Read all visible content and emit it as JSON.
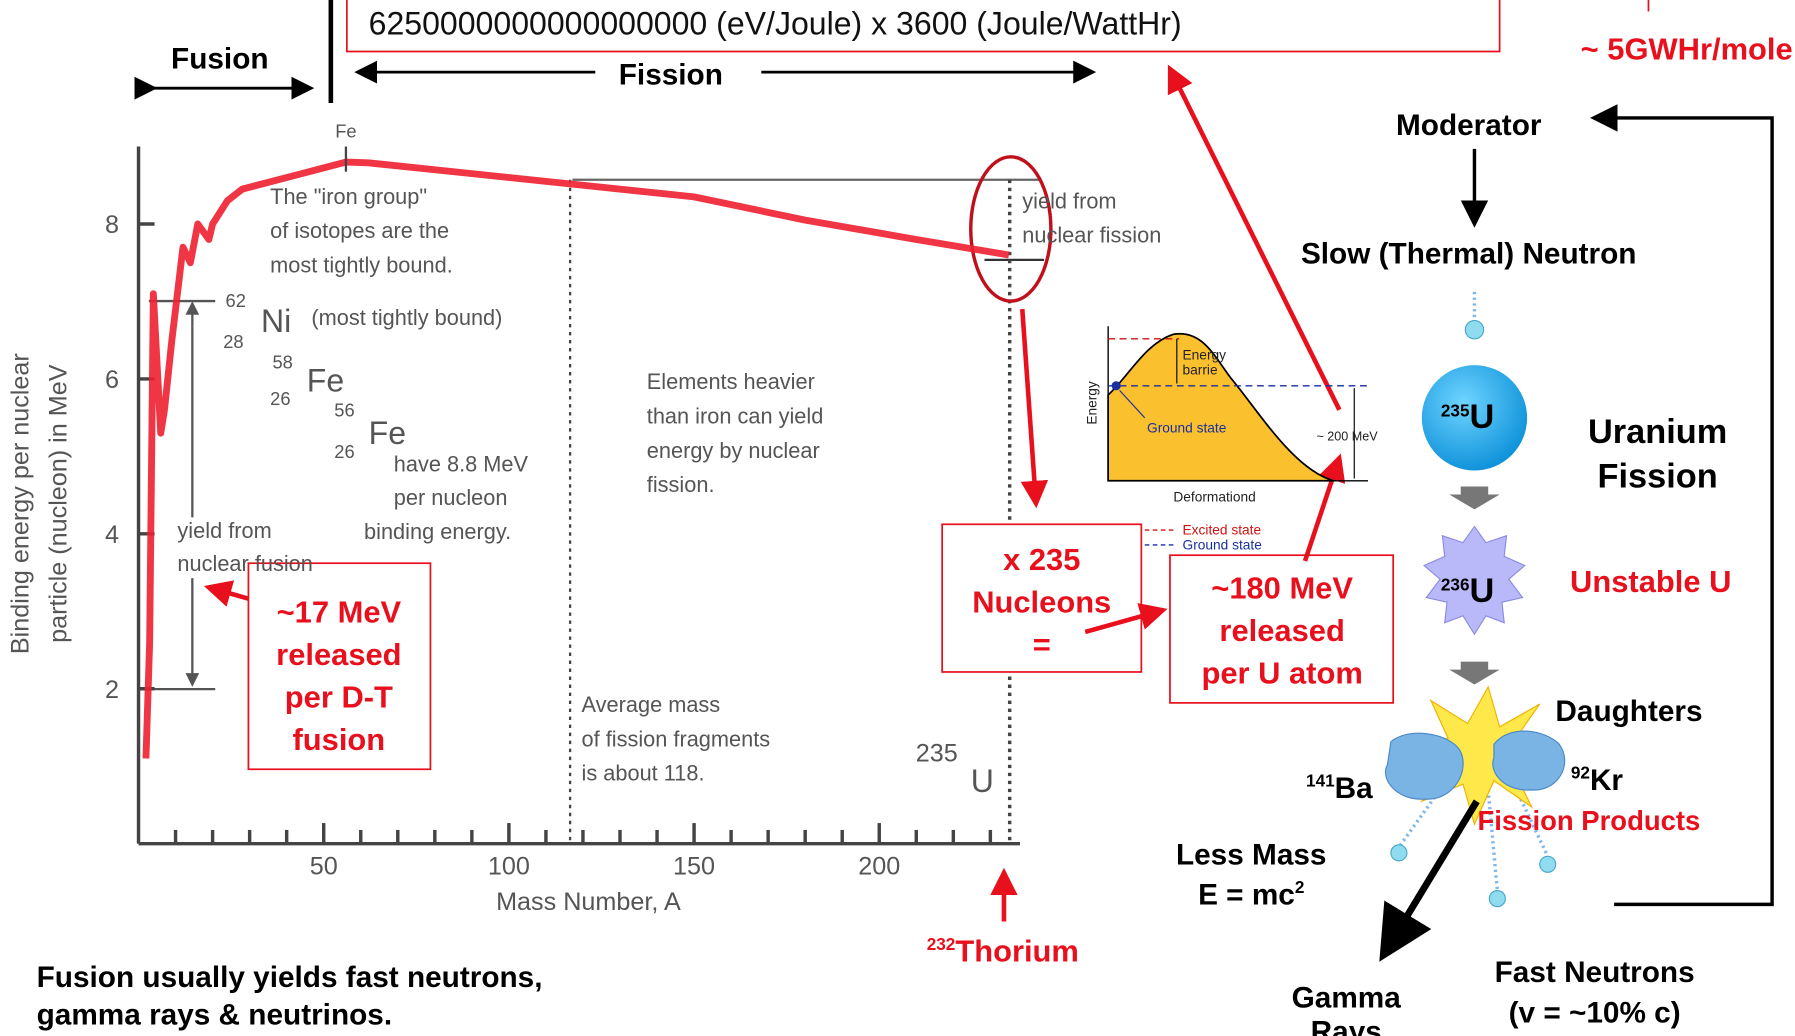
{
  "header": {
    "formula": "6250000000000000000 (eV/Joule) x 3600 (Joule/WattHr)",
    "result": "~ 5GWHr/mole"
  },
  "regions": {
    "fusion": "Fusion",
    "fission": "Fission"
  },
  "chart": {
    "peak_label": "Fe",
    "y_label": [
      "Binding energy per nuclear",
      "particle (nucleon) in MeV"
    ],
    "x_label": "Mass Number, A",
    "xlim": [
      0,
      238
    ],
    "ylim": [
      0,
      9
    ],
    "xticks": [
      50,
      100,
      150,
      200
    ],
    "xminorticks": [
      10,
      20,
      30,
      40,
      60,
      70,
      80,
      90,
      110,
      120,
      130,
      140,
      160,
      170,
      180,
      190,
      210,
      220,
      230
    ],
    "yticks": [
      2,
      4,
      6,
      8
    ],
    "x": [
      2,
      3,
      4,
      6,
      7,
      9,
      12,
      14,
      16,
      19,
      20,
      24,
      28,
      32,
      40,
      56,
      62,
      80,
      100,
      120,
      150,
      180,
      210,
      235
    ],
    "y": [
      1.1,
      2.6,
      7.1,
      5.3,
      5.6,
      6.5,
      7.7,
      7.5,
      8.0,
      7.8,
      8.0,
      8.3,
      8.45,
      8.5,
      8.6,
      8.8,
      8.79,
      8.7,
      8.6,
      8.5,
      8.35,
      8.05,
      7.8,
      7.6
    ],
    "notes": {
      "iron_group": [
        "The \"iron group\"",
        "of isotopes are the",
        "most tightly bound."
      ],
      "ni62": {
        "mass": "62",
        "number": "28",
        "symbol": "Ni",
        "note": "(most tightly bound)"
      },
      "fe58": {
        "mass": "58",
        "number": "26",
        "symbol": "Fe"
      },
      "fe56": {
        "mass": "56",
        "number": "26",
        "symbol": "Fe"
      },
      "fe_note": [
        "have 8.8 MeV",
        "per nucleon",
        "binding energy."
      ],
      "fusion_yield": [
        "yield from",
        "nuclear fusion"
      ],
      "heavier": [
        "Elements heavier",
        "than iron can yield",
        "energy by nuclear",
        "fission."
      ],
      "fragments": [
        "Average mass",
        "of fission fragments",
        "is about 118."
      ],
      "u235": {
        "mass": "235",
        "symbol": "U"
      },
      "fission_yield": [
        "yield from",
        "nuclear fission"
      ]
    }
  },
  "callouts": {
    "fusion_energy": [
      "~17 MeV",
      "released",
      "per D-T",
      "fusion"
    ],
    "nucleons": [
      "x 235",
      "Nucleons",
      "="
    ],
    "fission_energy": [
      "~180 MeV",
      "released",
      "per U atom"
    ],
    "thorium": {
      "mass": "232",
      "name": "Thorium"
    }
  },
  "energy_diagram": {
    "y_label": "Energy",
    "barrier": [
      "Energy",
      "barrie"
    ],
    "ground": "Ground state",
    "release": "~ 200 MeV",
    "x_label": "Deformation",
    "x_symbol": "d",
    "legend": [
      "Excited state",
      "Ground state"
    ]
  },
  "fission_process": {
    "moderator": "Moderator",
    "slow_neutron": "Slow (Thermal) Neutron",
    "u235": {
      "mass": "235",
      "symbol": "U"
    },
    "title": [
      "Uranium",
      "Fission"
    ],
    "u236": {
      "mass": "236",
      "symbol": "U"
    },
    "unstable": "Unstable U",
    "daughters": "Daughters",
    "ba": {
      "mass": "141",
      "symbol": "Ba"
    },
    "kr": {
      "mass": "92",
      "symbol": "Kr"
    },
    "products": "Fission Products",
    "less_mass": "Less Mass",
    "equation": {
      "text": "E = mc",
      "power": "2"
    },
    "gamma": [
      "Gamma",
      "Rays"
    ],
    "fast_neutrons": [
      "Fast Neutrons",
      "(v = ~10% c)"
    ]
  },
  "footer": [
    "Fusion usually yields fast neutrons,",
    "gamma rays & neutrinos."
  ]
}
